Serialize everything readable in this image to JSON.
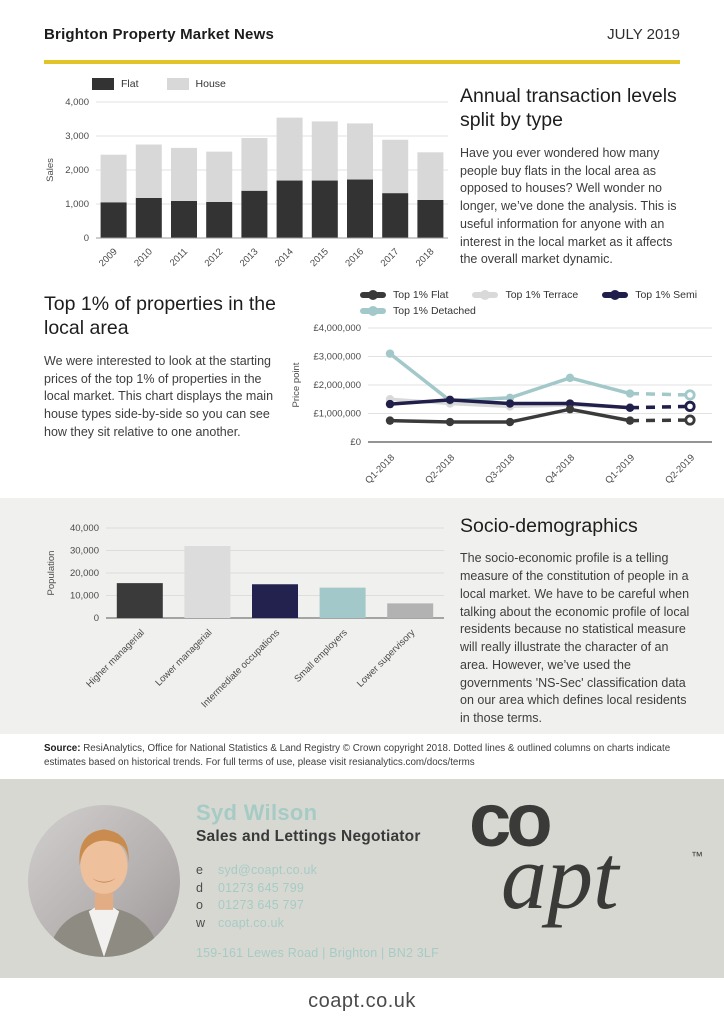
{
  "header": {
    "title": "Brighton Property Market News",
    "date": "JULY 2019",
    "accent_color": "#e2c428"
  },
  "sections": {
    "transactions": {
      "heading": "Annual transaction levels split by type",
      "body": "Have you ever wondered how many people buy flats in the local area as opposed to houses? Well wonder no longer, we’ve done the analysis. This is useful information for anyone with an interest in the local market as it affects the overall market dynamic."
    },
    "top1": {
      "heading": "Top 1% of properties in the local area",
      "body": "We were interested to look at the starting prices of the top 1% of properties in the local market. This chart displays the main house types side-by-side so you can see how they sit relative to one another."
    },
    "socio": {
      "heading": "Socio-demographics",
      "body": "The socio-economic profile is a telling measure of the constitution of people in a local market. We have to be careful when talking about the economic profile of local residents because no statistical measure will really illustrate the character of an area. However, we’ve used the governments 'NS-Sec' classification data on our area which defines local residents in those terms."
    }
  },
  "source_note": {
    "label": "Source:",
    "text": " ResiAnalytics, Office for National Statistics & Land Registry © Crown copyright 2018. Dotted lines & outlined columns on charts indicate estimates based on historical trends. For full terms of use, please visit resianalytics.com/docs/terms"
  },
  "chart_data": [
    {
      "id": "transactions",
      "type": "bar",
      "stacked": true,
      "categories": [
        "2009",
        "2010",
        "2011",
        "2012",
        "2013",
        "2014",
        "2015",
        "2016",
        "2017",
        "2018"
      ],
      "series": [
        {
          "name": "Flat",
          "color": "#333333",
          "values": [
            1050,
            1180,
            1090,
            1060,
            1390,
            1690,
            1690,
            1720,
            1320,
            1120
          ]
        },
        {
          "name": "House",
          "color": "#d8d8d8",
          "values": [
            1400,
            1570,
            1560,
            1480,
            1550,
            1850,
            1740,
            1650,
            1570,
            1400
          ]
        }
      ],
      "ylabel": "Sales",
      "ylim": [
        0,
        4000
      ],
      "yticks": [
        0,
        1000,
        2000,
        3000,
        4000
      ],
      "ytick_labels": [
        "0",
        "1,000",
        "2,000",
        "3,000",
        "4,000"
      ],
      "legend_position": "top"
    },
    {
      "id": "top1",
      "type": "line",
      "categories": [
        "Q1-2018",
        "Q2-2018",
        "Q3-2018",
        "Q4-2018",
        "Q1-2019",
        "Q2-2019"
      ],
      "series": [
        {
          "name": "Top 1% Flat",
          "color": "#3a3a3a",
          "values": [
            750000,
            700000,
            700000,
            1150000,
            750000,
            770000
          ]
        },
        {
          "name": "Top 1% Terrace",
          "color": "#d9d9d9",
          "values": [
            1500000,
            1350000,
            1250000,
            1300000,
            1220000,
            1250000
          ]
        },
        {
          "name": "Top 1% Semi",
          "color": "#201e4a",
          "values": [
            1330000,
            1480000,
            1350000,
            1350000,
            1200000,
            1250000
          ]
        },
        {
          "name": "Top 1% Detached",
          "color": "#a2c8c9",
          "values": [
            3100000,
            1450000,
            1550000,
            2250000,
            1700000,
            1650000
          ]
        }
      ],
      "ylabel": "Price point",
      "ylim": [
        0,
        4000000
      ],
      "yticks": [
        0,
        1000000,
        2000000,
        3000000,
        4000000
      ],
      "ytick_labels": [
        "£0",
        "£1,000,000",
        "£2,000,000",
        "£3,000,000",
        "£4,000,000"
      ],
      "estimated_from_index": 4,
      "note": "dashed final segment with outlined markers = estimate",
      "legend_position": "top"
    },
    {
      "id": "socio",
      "type": "bar",
      "stacked": false,
      "categories": [
        "Higher managerial",
        "Lower managerial",
        "Intermediate occupations",
        "Small employers",
        "Lower supervisory"
      ],
      "values": [
        15500,
        32000,
        15000,
        13500,
        6500
      ],
      "bar_colors": [
        "#3a3a3a",
        "#dcdcdc",
        "#23224e",
        "#a2c8c9",
        "#b2b2b2"
      ],
      "ylabel": "Population",
      "ylim": [
        0,
        40000
      ],
      "yticks": [
        0,
        10000,
        20000,
        30000,
        40000
      ],
      "ytick_labels": [
        "0",
        "10,000",
        "20,000",
        "30,000",
        "40,000"
      ]
    }
  ],
  "footer": {
    "name": "Syd Wilson",
    "role": "Sales and Lettings Negotiator",
    "accent_color": "#a6cbc5",
    "contacts": [
      {
        "prefix": "e",
        "value": "syd@coapt.co.uk"
      },
      {
        "prefix": "d",
        "value": "01273 645 799"
      },
      {
        "prefix": "o",
        "value": "01273 645 797"
      },
      {
        "prefix": "w",
        "value": "coapt.co.uk"
      }
    ],
    "address": "159-161 Lewes Road | Brighton | BN2 3LF",
    "logo": {
      "co": "co",
      "apt": "apt",
      "tm": "™"
    },
    "website": "coapt.co.uk"
  }
}
